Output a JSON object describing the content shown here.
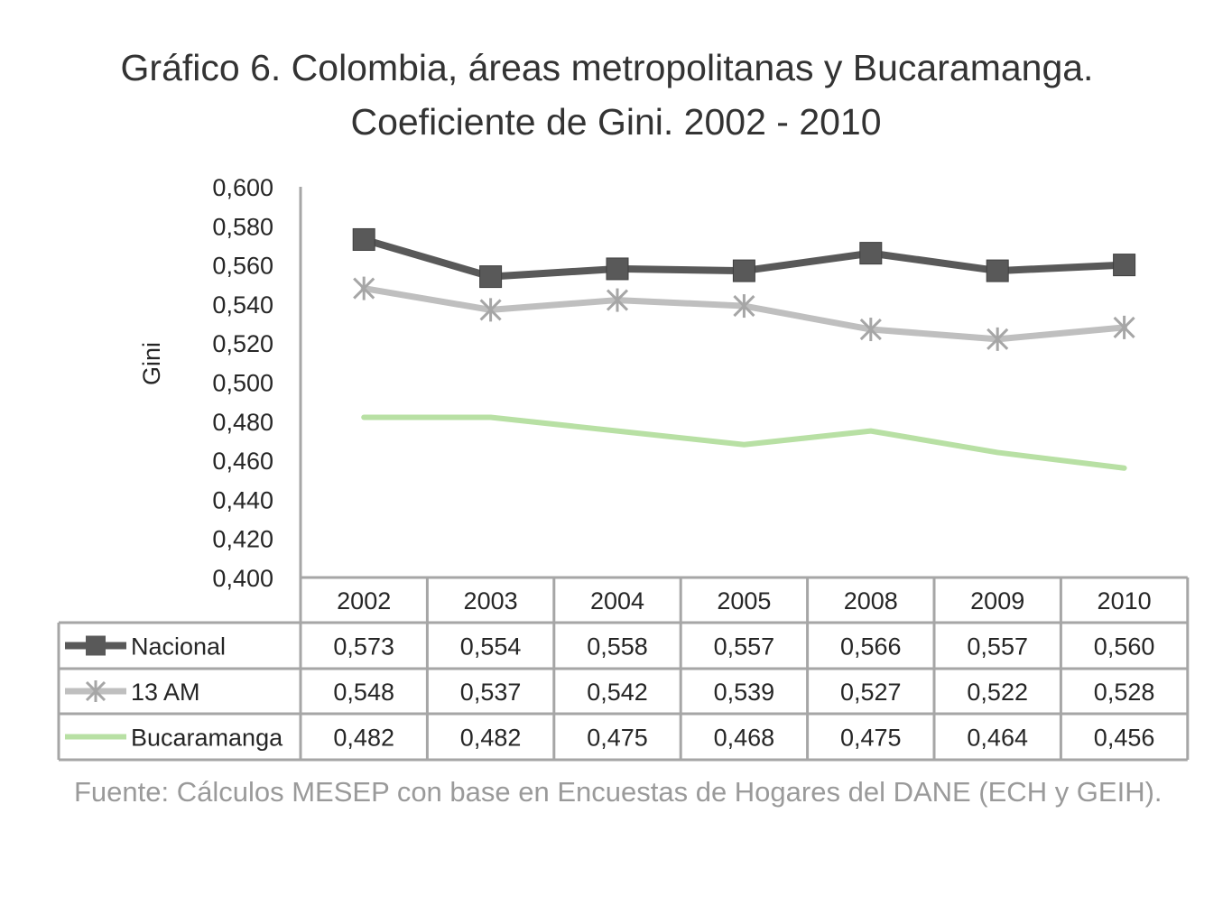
{
  "chart_data": {
    "type": "line",
    "title": "Gráfico 6. Colombia, áreas metropolitanas y Bucaramanga.",
    "subtitle": "Coeficiente de Gini. 2002 - 2010",
    "ylabel": "Gini",
    "xlabel": "",
    "ylim": [
      0.4,
      0.6
    ],
    "y_ticks": [
      "0,400",
      "0,420",
      "0,440",
      "0,460",
      "0,480",
      "0,500",
      "0,520",
      "0,540",
      "0,560",
      "0,580",
      "0,600"
    ],
    "categories": [
      "2002",
      "2003",
      "2004",
      "2005",
      "2008",
      "2009",
      "2010"
    ],
    "series": [
      {
        "name": "Nacional",
        "color": "#595959",
        "marker": "square",
        "values": [
          0.573,
          0.554,
          0.558,
          0.557,
          0.566,
          0.557,
          0.56
        ],
        "labels": [
          "0,573",
          "0,554",
          "0,558",
          "0,557",
          "0,566",
          "0,557",
          "0,560"
        ]
      },
      {
        "name": "13 AM",
        "color": "#bfbfbf",
        "marker": "star",
        "values": [
          0.548,
          0.537,
          0.542,
          0.539,
          0.527,
          0.522,
          0.528
        ],
        "labels": [
          "0,548",
          "0,537",
          "0,542",
          "0,539",
          "0,527",
          "0,522",
          "0,528"
        ]
      },
      {
        "name": "Bucaramanga",
        "color": "#b8e0a4",
        "marker": "none",
        "values": [
          0.482,
          0.482,
          0.475,
          0.468,
          0.475,
          0.464,
          0.456
        ],
        "labels": [
          "0,482",
          "0,482",
          "0,475",
          "0,468",
          "0,475",
          "0,464",
          "0,456"
        ]
      }
    ],
    "grid": false,
    "legend": "data-table"
  },
  "source": "Fuente: Cálculos MESEP con base en Encuestas de Hogares del DANE (ECH y GEIH)."
}
